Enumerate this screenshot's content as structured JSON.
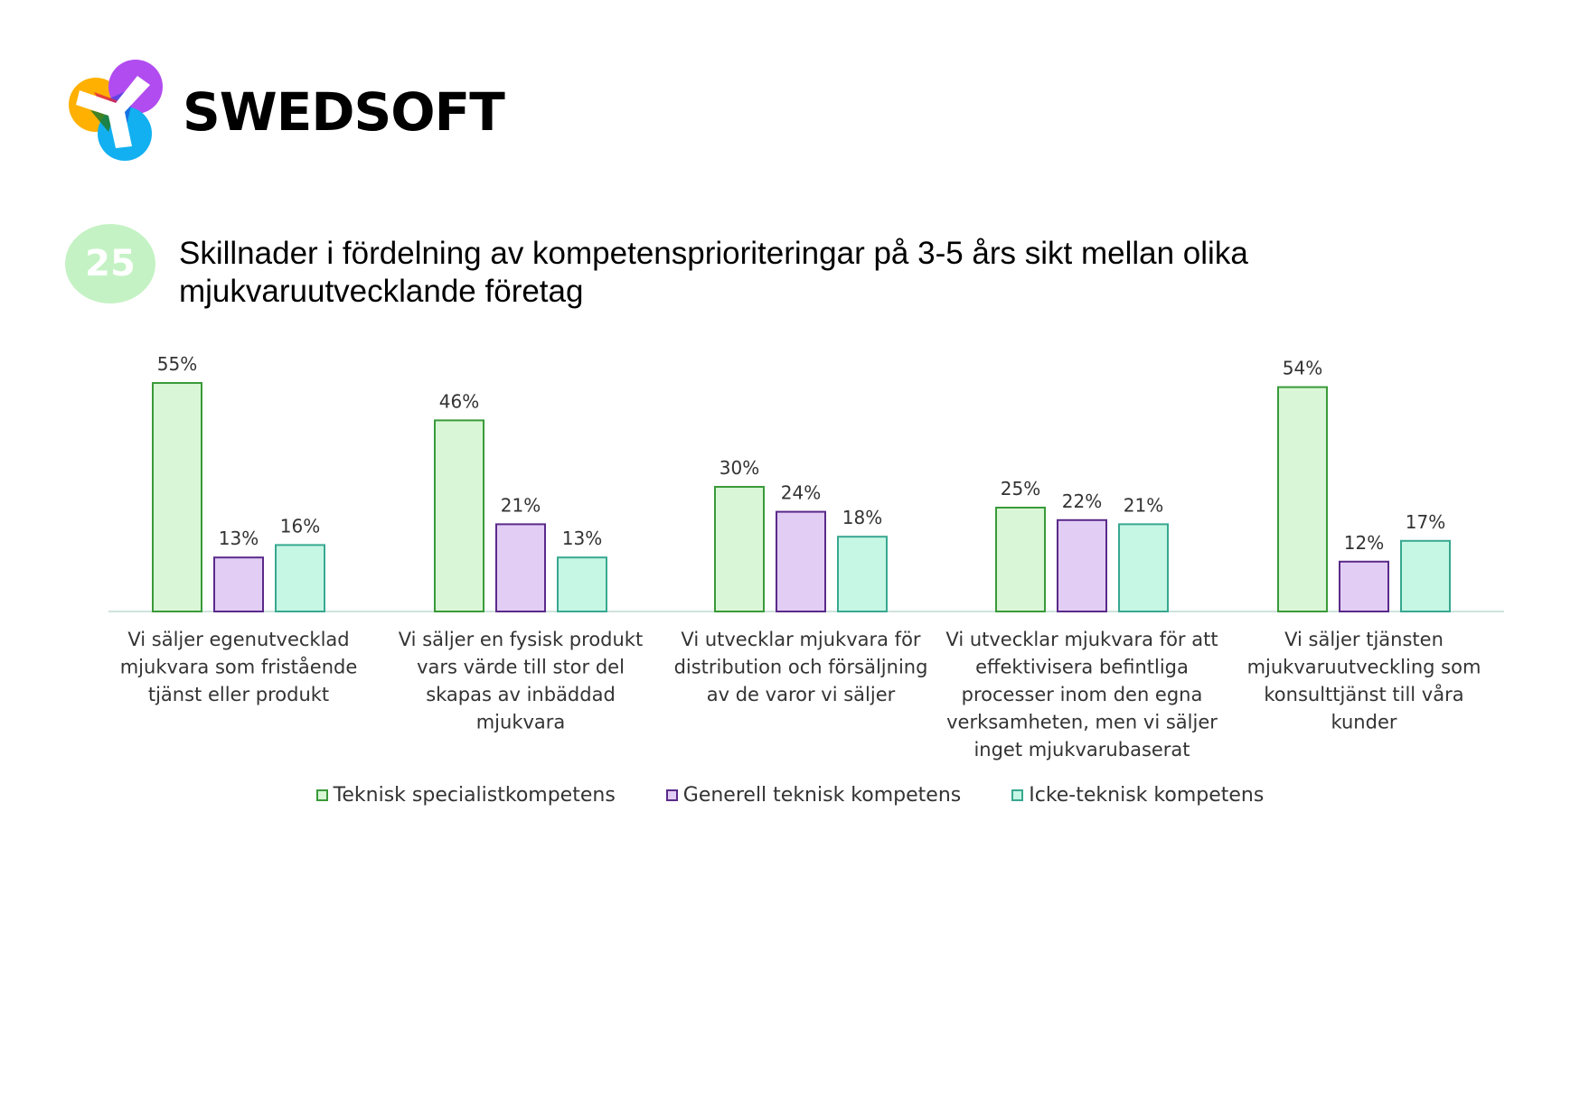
{
  "brand": {
    "name": "SWEDSOFT"
  },
  "badge": {
    "number": "25"
  },
  "title": "Skillnader i fördelning av kompetensprioriteringar på 3-5 års sikt mellan olika mjukvaruutvecklande företag",
  "colors": {
    "series": [
      {
        "fill": "#d9f7d6",
        "stroke": "#3a9a3a"
      },
      {
        "fill": "#e2cdf4",
        "stroke": "#5a2a8a"
      },
      {
        "fill": "#c6f7e4",
        "stroke": "#38a890"
      }
    ],
    "axis": "#cfe3dc"
  },
  "chart_data": {
    "type": "bar",
    "categories": [
      [
        "Vi säljer egenutvecklad",
        "mjukvara som fristående",
        "tjänst eller produkt"
      ],
      [
        "Vi säljer en fysisk produkt",
        "vars värde till stor del",
        "skapas av inbäddad",
        "mjukvara"
      ],
      [
        "Vi utvecklar mjukvara för",
        "distribution och försäljning",
        "av de varor vi säljer"
      ],
      [
        "Vi utvecklar mjukvara för att",
        "effektivisera befintliga",
        "processer inom den egna",
        "verksamheten, men vi säljer",
        "inget mjukvarubaserat"
      ],
      [
        "Vi säljer tjänsten",
        "mjukvaruutveckling som",
        "konsulttjänst till våra",
        "kunder"
      ]
    ],
    "series": [
      {
        "name": "Teknisk specialistkompetens",
        "values": [
          55,
          46,
          30,
          25,
          54
        ],
        "labels": [
          "55%",
          "46%",
          "30%",
          "25%",
          "54%"
        ]
      },
      {
        "name": "Generell teknisk kompetens",
        "values": [
          13,
          21,
          24,
          22,
          12
        ],
        "labels": [
          "13%",
          "21%",
          "24%",
          "22%",
          "12%"
        ]
      },
      {
        "name": "Icke-teknisk kompetens",
        "values": [
          16,
          13,
          18,
          21,
          17
        ],
        "labels": [
          "16%",
          "13%",
          "18%",
          "21%",
          "17%"
        ]
      }
    ],
    "ylim": [
      0,
      60
    ],
    "grid": false,
    "legend": "bottom"
  }
}
